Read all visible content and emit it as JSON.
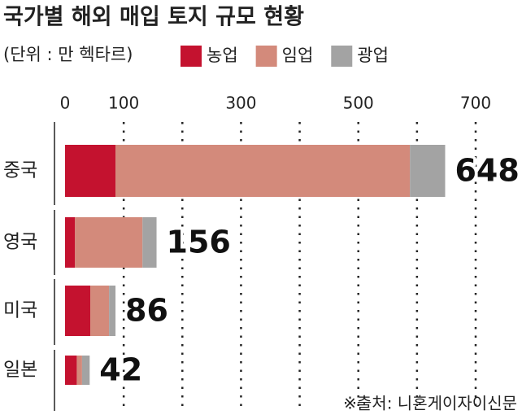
{
  "chart_data": {
    "type": "stacked-bar-horizontal",
    "title": "국가별 해외 매입 토지 규모 현황",
    "subtitle": "(단위 : 만 헥타르)",
    "source": "※출처: 니혼게이자이신문",
    "categories": [
      "중국",
      "영국",
      "미국",
      "일본"
    ],
    "series": [
      {
        "name": "농업",
        "color": "#c4122f",
        "values": [
          86,
          17,
          43,
          20
        ]
      },
      {
        "name": "임업",
        "color": "#d38a7b",
        "values": [
          502,
          115,
          32,
          9
        ]
      },
      {
        "name": "광업",
        "color": "#a3a3a3",
        "values": [
          60,
          24,
          11,
          13
        ]
      }
    ],
    "totals": [
      648,
      156,
      86,
      42
    ],
    "xlim": [
      0,
      700
    ],
    "xticks": [
      0,
      100,
      300,
      500,
      700
    ],
    "xgrid": [
      100,
      200,
      300,
      400,
      500,
      600,
      700
    ]
  }
}
